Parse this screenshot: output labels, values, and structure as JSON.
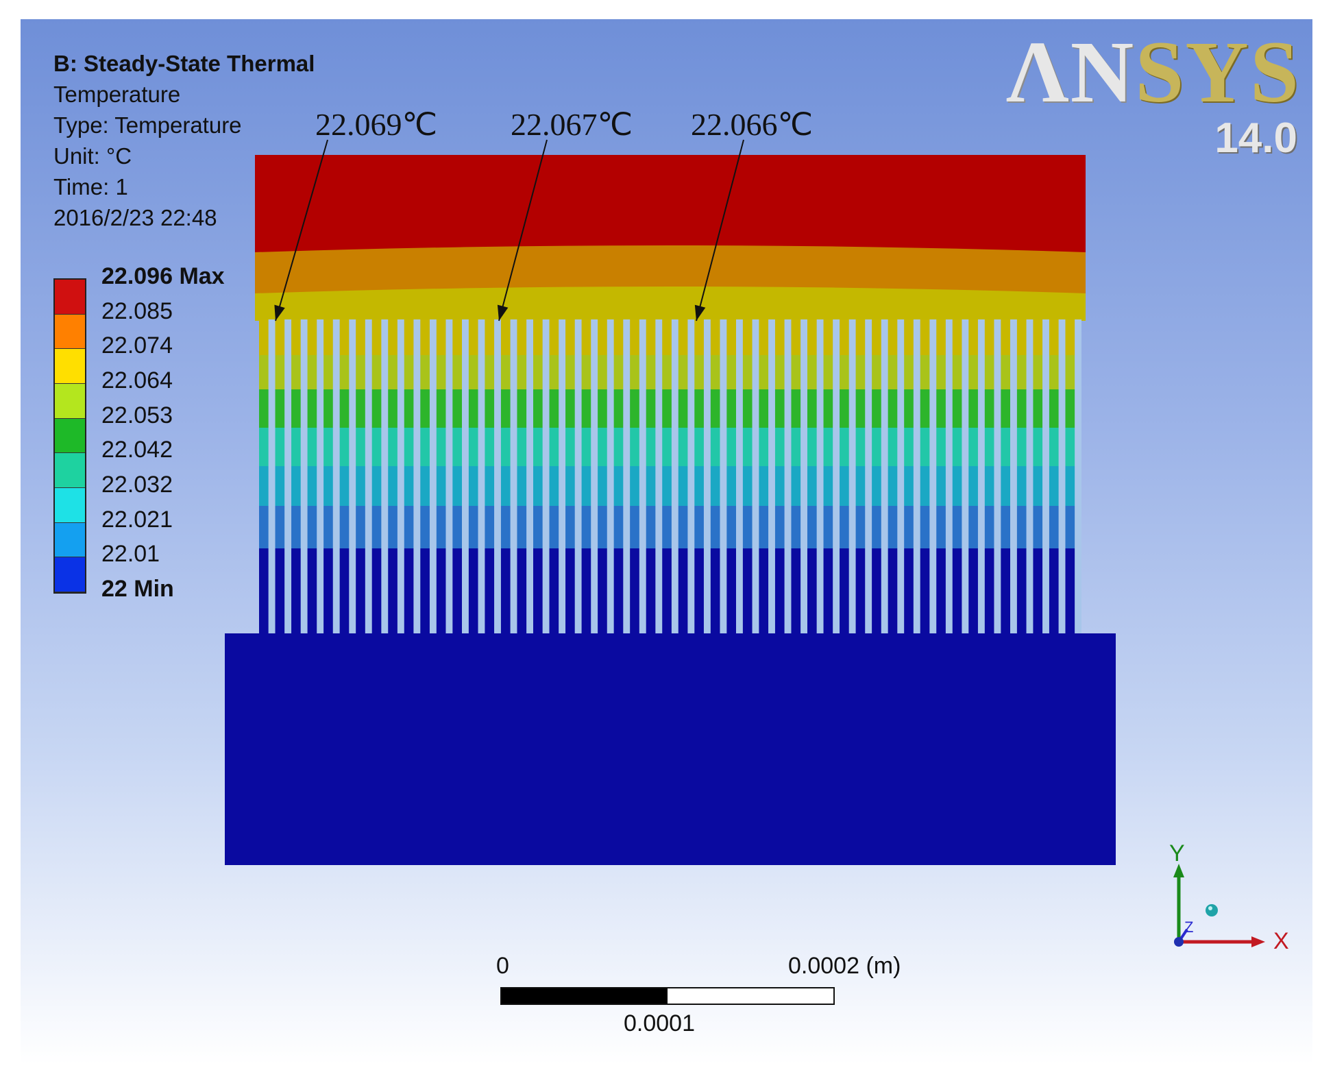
{
  "info": {
    "title": "B: Steady-State Thermal",
    "result": "Temperature",
    "type": "Type: Temperature",
    "unit": "Unit: °C",
    "time": "Time: 1",
    "date": "2016/2/23 22:48"
  },
  "legend": {
    "colors": [
      "#d01010",
      "#ff8000",
      "#ffdf00",
      "#b4e61e",
      "#1eb928",
      "#1ed2a0",
      "#1ee1e6",
      "#14a0f0",
      "#0a32e6"
    ],
    "labels": [
      "22.096 Max",
      "22.085",
      "22.074",
      "22.064",
      "22.053",
      "22.042",
      "22.032",
      "22.021",
      "22.01",
      "22 Min"
    ]
  },
  "logo": {
    "brand_an": "ΛN",
    "brand_sys": "SYS",
    "version": "14.0"
  },
  "annotations": [
    {
      "label": "22.069℃"
    },
    {
      "label": "22.067℃"
    },
    {
      "label": "22.066℃"
    }
  ],
  "model": {
    "fin_count": 51,
    "band_colors": [
      "#c8b800",
      "#a9c31a",
      "#2db52b",
      "#22c7a8",
      "#1aa8c4",
      "#2a72c8",
      "#0a0aa0"
    ],
    "top_colors": [
      "#b30000",
      "#c98000",
      "#c4b800"
    ],
    "base_color": "#0a0aa0",
    "fin_gap_color": "#a8c6ea"
  },
  "scale": {
    "start": "0",
    "end": "0.0002 (m)",
    "mid": "0.0001"
  },
  "triad": {
    "x": "X",
    "y": "Y",
    "z": "Z"
  }
}
